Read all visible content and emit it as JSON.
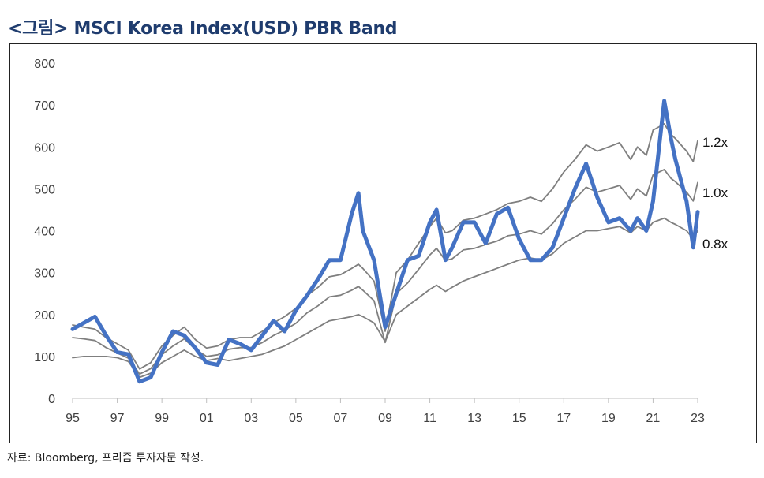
{
  "title": "<그림> MSCI Korea Index(USD) PBR Band",
  "source": "자료: Bloomberg, 프리즘 투자자문 작성.",
  "colors": {
    "title": "#1f3c6e",
    "index_line": "#4472c4",
    "band_lines": "#7f7f7f"
  },
  "chart_data": {
    "type": "line",
    "title": "MSCI Korea Index(USD) PBR Band",
    "xlabel": "",
    "ylabel": "",
    "ylim": [
      0,
      800
    ],
    "xlim": [
      1995,
      2023
    ],
    "y_ticks": [
      "0",
      "100",
      "200",
      "300",
      "400",
      "500",
      "600",
      "700",
      "800"
    ],
    "x_ticks": [
      "95",
      "97",
      "99",
      "01",
      "03",
      "05",
      "07",
      "09",
      "11",
      "13",
      "15",
      "17",
      "19",
      "21",
      "23"
    ],
    "grid": false,
    "x": [
      1995.0,
      1995.5,
      1996.0,
      1996.5,
      1997.0,
      1997.5,
      1998.0,
      1998.5,
      1999.0,
      1999.5,
      2000.0,
      2000.5,
      2001.0,
      2001.5,
      2002.0,
      2002.5,
      2003.0,
      2003.5,
      2004.0,
      2004.5,
      2005.0,
      2005.5,
      2006.0,
      2006.5,
      2007.0,
      2007.5,
      2007.8,
      2008.0,
      2008.5,
      2009.0,
      2009.5,
      2010.0,
      2010.5,
      2011.0,
      2011.3,
      2011.7,
      2012.0,
      2012.5,
      2013.0,
      2013.5,
      2014.0,
      2014.5,
      2015.0,
      2015.5,
      2016.0,
      2016.5,
      2017.0,
      2017.5,
      2018.0,
      2018.5,
      2019.0,
      2019.5,
      2020.0,
      2020.3,
      2020.7,
      2021.0,
      2021.5,
      2021.8,
      2022.0,
      2022.5,
      2022.8,
      2023.0
    ],
    "series": [
      {
        "name": "MSCI Korea Index (USD)",
        "values": [
          165,
          180,
          195,
          150,
          110,
          105,
          40,
          50,
          110,
          160,
          150,
          120,
          85,
          80,
          140,
          130,
          115,
          150,
          185,
          160,
          210,
          245,
          285,
          330,
          330,
          440,
          490,
          400,
          330,
          170,
          250,
          330,
          340,
          420,
          450,
          330,
          360,
          420,
          420,
          370,
          440,
          455,
          380,
          330,
          330,
          360,
          430,
          500,
          560,
          480,
          420,
          430,
          400,
          430,
          400,
          470,
          710,
          620,
          570,
          470,
          360,
          445
        ]
      },
      {
        "name": "1.2x",
        "values": [
          175,
          170,
          165,
          145,
          130,
          115,
          70,
          85,
          125,
          150,
          170,
          140,
          120,
          125,
          140,
          145,
          145,
          160,
          180,
          195,
          215,
          245,
          265,
          290,
          295,
          310,
          320,
          310,
          280,
          160,
          300,
          330,
          370,
          410,
          430,
          395,
          400,
          425,
          430,
          440,
          450,
          465,
          470,
          480,
          470,
          500,
          540,
          570,
          605,
          590,
          600,
          610,
          570,
          600,
          580,
          640,
          655,
          630,
          620,
          590,
          565,
          615
        ]
      },
      {
        "name": "1.0x",
        "values": [
          145,
          142,
          138,
          121,
          108,
          96,
          58,
          71,
          104,
          125,
          142,
          117,
          100,
          104,
          117,
          121,
          121,
          133,
          150,
          163,
          179,
          204,
          221,
          242,
          246,
          258,
          267,
          258,
          233,
          133,
          250,
          275,
          308,
          342,
          358,
          329,
          333,
          354,
          358,
          367,
          375,
          388,
          392,
          400,
          392,
          417,
          450,
          475,
          504,
          492,
          500,
          508,
          475,
          500,
          483,
          533,
          546,
          525,
          517,
          492,
          471,
          515
        ]
      },
      {
        "name": "0.8x",
        "values": [
          97,
          100,
          100,
          100,
          97,
          88,
          50,
          60,
          85,
          100,
          115,
          100,
          90,
          95,
          90,
          95,
          100,
          105,
          115,
          125,
          140,
          155,
          170,
          185,
          190,
          195,
          200,
          195,
          180,
          135,
          200,
          220,
          240,
          260,
          270,
          255,
          265,
          280,
          290,
          300,
          310,
          320,
          330,
          335,
          330,
          345,
          370,
          385,
          400,
          400,
          405,
          410,
          395,
          410,
          400,
          420,
          430,
          420,
          415,
          400,
          380,
          400
        ]
      }
    ],
    "band_labels": [
      "1.2x",
      "1.0x",
      "0.8x"
    ]
  }
}
